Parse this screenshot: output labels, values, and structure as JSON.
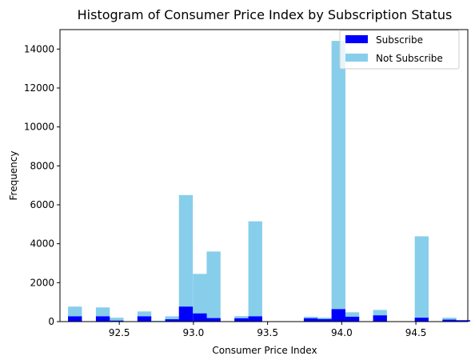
{
  "colors": {
    "subscribe": "#0000ff",
    "not_subscribe": "#87ceeb",
    "axes": "#000000",
    "background": "#ffffff"
  },
  "chart_data": {
    "type": "bar",
    "title": "Histogram of Consumer Price Index by Subscription Status",
    "xlabel": "Consumer Price Index",
    "ylabel": "Frequency",
    "xlim": [
      92.1,
      94.85
    ],
    "ylim": [
      0,
      15000
    ],
    "xticks": [
      92.5,
      93.0,
      93.5,
      94.0,
      94.5
    ],
    "xtick_labels": [
      "92.5",
      "93.0",
      "93.5",
      "94.0",
      "94.5"
    ],
    "yticks": [
      0,
      2000,
      4000,
      6000,
      8000,
      10000,
      12000,
      14000
    ],
    "ytick_labels": [
      "0",
      "2000",
      "4000",
      "6000",
      "8000",
      "10000",
      "12000",
      "14000"
    ],
    "bin_width": 0.0935,
    "legend": {
      "placement": "top-right",
      "entries": [
        "Subscribe",
        "Not Subscribe"
      ]
    },
    "grid": false,
    "series": [
      {
        "name": "Subscribe",
        "color": "#0000ff",
        "bins": [
          {
            "x": 92.201,
            "value": 270
          },
          {
            "x": 92.389,
            "value": 270
          },
          {
            "x": 92.482,
            "value": 50
          },
          {
            "x": 92.669,
            "value": 270
          },
          {
            "x": 92.856,
            "value": 120
          },
          {
            "x": 92.949,
            "value": 770
          },
          {
            "x": 93.043,
            "value": 420
          },
          {
            "x": 93.136,
            "value": 180
          },
          {
            "x": 93.323,
            "value": 170
          },
          {
            "x": 93.417,
            "value": 270
          },
          {
            "x": 93.791,
            "value": 170
          },
          {
            "x": 93.884,
            "value": 130
          },
          {
            "x": 93.978,
            "value": 640
          },
          {
            "x": 94.071,
            "value": 250
          },
          {
            "x": 94.258,
            "value": 320
          },
          {
            "x": 94.539,
            "value": 200
          },
          {
            "x": 94.726,
            "value": 100
          },
          {
            "x": 94.819,
            "value": 70
          }
        ]
      },
      {
        "name": "Not Subscribe",
        "color": "#87ceeb",
        "bins": [
          {
            "x": 92.201,
            "value": 770
          },
          {
            "x": 92.389,
            "value": 730
          },
          {
            "x": 92.482,
            "value": 200
          },
          {
            "x": 92.669,
            "value": 520
          },
          {
            "x": 92.763,
            "value": 40
          },
          {
            "x": 92.856,
            "value": 270
          },
          {
            "x": 92.949,
            "value": 6500
          },
          {
            "x": 93.043,
            "value": 2450
          },
          {
            "x": 93.136,
            "value": 3600
          },
          {
            "x": 93.323,
            "value": 280
          },
          {
            "x": 93.417,
            "value": 5150
          },
          {
            "x": 93.791,
            "value": 250
          },
          {
            "x": 93.884,
            "value": 200
          },
          {
            "x": 93.978,
            "value": 14420
          },
          {
            "x": 94.071,
            "value": 480
          },
          {
            "x": 94.258,
            "value": 600
          },
          {
            "x": 94.539,
            "value": 4380
          },
          {
            "x": 94.726,
            "value": 200
          },
          {
            "x": 94.819,
            "value": 70
          }
        ]
      }
    ]
  }
}
